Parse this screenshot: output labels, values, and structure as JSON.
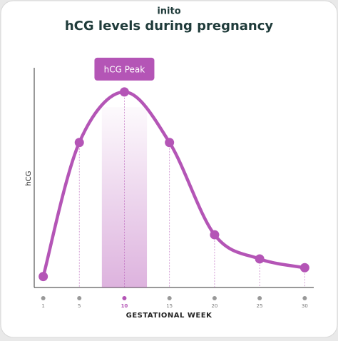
{
  "brand": "inito",
  "chart_data": {
    "type": "line",
    "title": "hCG levels during pregnancy",
    "x_label": "GESTATIONAL WEEK",
    "y_label": "hCG",
    "annotation": "hCG Peak",
    "x": [
      1,
      5,
      10,
      15,
      20,
      25,
      30
    ],
    "series": [
      {
        "name": "hCG",
        "color": "#b455b6",
        "values": [
          5,
          66,
          89,
          66,
          24,
          13,
          9
        ]
      }
    ],
    "xlim": [
      0,
      31
    ],
    "ylim": [
      0,
      100
    ],
    "xticks": [
      1,
      5,
      10,
      15,
      20,
      25,
      30
    ],
    "highlight": [
      7.5,
      12.5
    ],
    "smooth": true
  }
}
